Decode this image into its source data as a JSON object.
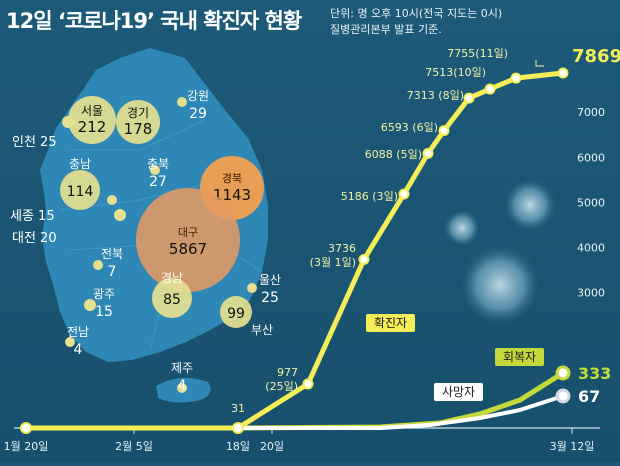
{
  "title": "12일 ‘코로나19’ 국내 확진자 현황",
  "unit_line1": "단위: 명  오후 10시(전국 지도는 0시)",
  "unit_line2": "질병관리본부 발표 기준.",
  "colors": {
    "background": "#1c5876",
    "confirmed": "#f3ee58",
    "recovered": "#c4d93a",
    "deaths": "#ffffff",
    "map_land": "#2f87b6",
    "region_bubble": "#e4e08f",
    "daegu_bubble": "#e39b62",
    "gyeongbuk_bubble": "#f0a050"
  },
  "regions": [
    {
      "name": "서울",
      "count": "212"
    },
    {
      "name": "경기",
      "count": "178"
    },
    {
      "name": "인천",
      "count": "25"
    },
    {
      "name": "강원",
      "count": "29"
    },
    {
      "name": "충북",
      "count": "27"
    },
    {
      "name": "충남",
      "count": "114"
    },
    {
      "name": "세종",
      "count": "15"
    },
    {
      "name": "대전",
      "count": "20"
    },
    {
      "name": "경북",
      "count": "1143"
    },
    {
      "name": "대구",
      "count": "5867"
    },
    {
      "name": "전북",
      "count": "7"
    },
    {
      "name": "광주",
      "count": "15"
    },
    {
      "name": "경남",
      "count": "85"
    },
    {
      "name": "울산",
      "count": "25"
    },
    {
      "name": "부산",
      "count": "99"
    },
    {
      "name": "전남",
      "count": "4"
    },
    {
      "name": "제주",
      "count": "4"
    }
  ],
  "chart_data": {
    "type": "line",
    "title": "12일 ‘코로나19’ 국내 확진자 현황",
    "x_ticks": [
      "1월 20일",
      "2월 5일",
      "18일",
      "20일",
      "3월 12일"
    ],
    "y_ticks": [
      3000,
      4000,
      5000,
      6000,
      7000
    ],
    "ylim": [
      0,
      7869
    ],
    "series": [
      {
        "name": "확진자",
        "points": [
          {
            "x": "1월 20일",
            "y": 1
          },
          {
            "x": "2월 18일",
            "y": 31,
            "label": "31"
          },
          {
            "x": "2월 25일",
            "y": 977,
            "label": "977\n(25일)"
          },
          {
            "x": "3월 1일",
            "y": 3736,
            "label": "3736\n(3월 1일)"
          },
          {
            "x": "3월 3일",
            "y": 5186,
            "label": "5186 (3일)"
          },
          {
            "x": "3월 5일",
            "y": 6088,
            "label": "6088 (5일)"
          },
          {
            "x": "3월 6일",
            "y": 6593,
            "label": "6593 (6일)"
          },
          {
            "x": "3월 8일",
            "y": 7313,
            "label": "7313 (8일)"
          },
          {
            "x": "3월 10일",
            "y": 7513,
            "label": "7513(10일)"
          },
          {
            "x": "3월 11일",
            "y": 7755,
            "label": "7755(11일)"
          },
          {
            "x": "3월 12일",
            "y": 7869,
            "label": "7869"
          }
        ]
      },
      {
        "name": "회복자",
        "final_value": 333,
        "final_label": "333"
      },
      {
        "name": "사망자",
        "final_value": 67,
        "final_label": "67"
      }
    ]
  }
}
